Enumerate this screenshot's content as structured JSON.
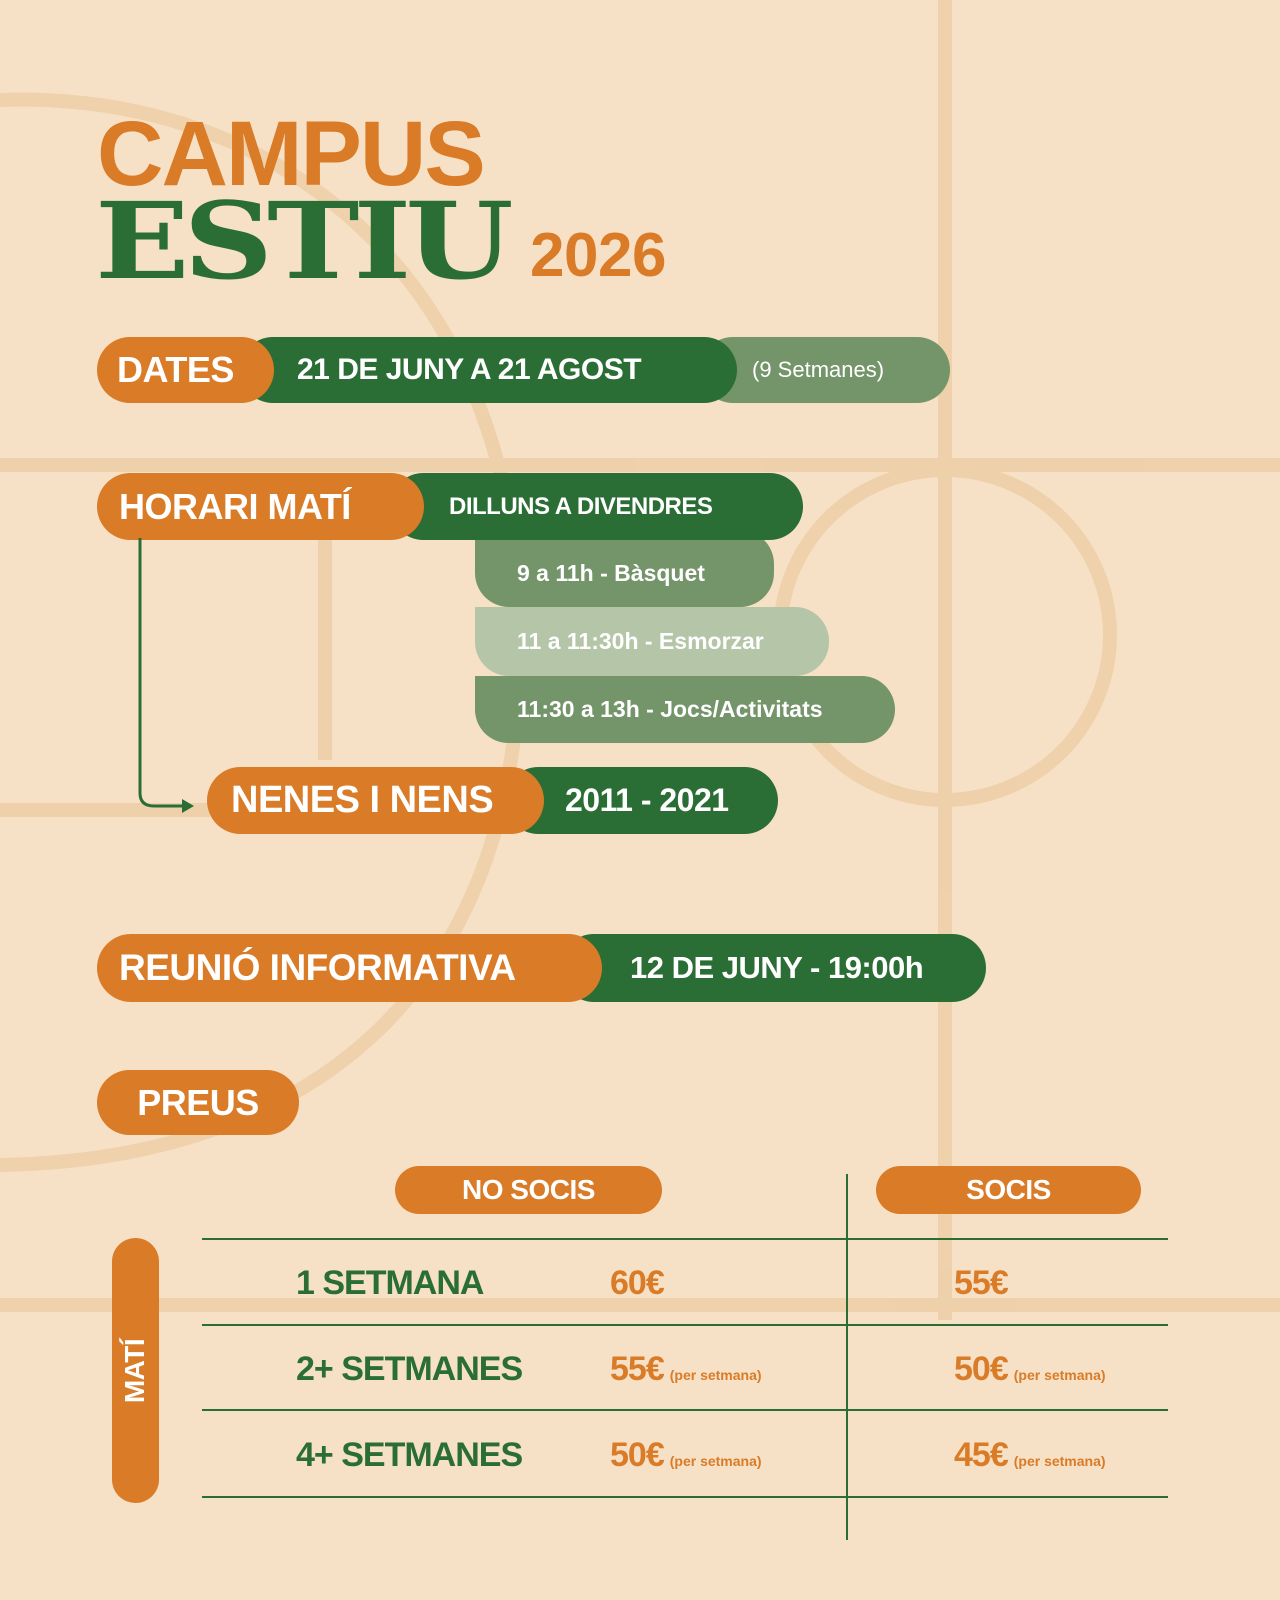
{
  "title": {
    "line1": "CAMPUS",
    "line2": "ESTIU",
    "year": "2026"
  },
  "colors": {
    "orange": "#d97b27",
    "dark_green": "#2a6e35",
    "mid_green": "#74946a",
    "light_green": "#b5c5a8",
    "background": "#f6e1c6"
  },
  "dates": {
    "label": "DATES",
    "value": "21 DE JUNY A 21 AGOST",
    "weeks": "(9 Setmanes)"
  },
  "schedule": {
    "label": "HORARI MATÍ",
    "days": "DILLUNS A DIVENDRES",
    "items": [
      "9 a 11h - Bàsquet",
      "11 a 11:30h - Esmorzar",
      "11:30 a 13h - Jocs/Activitats"
    ]
  },
  "kids": {
    "label": "NENES I NENS",
    "years": "2011 - 2021"
  },
  "meeting": {
    "label": "REUNIÓ INFORMATIVA",
    "value": "12 DE JUNY - 19:00h"
  },
  "prices": {
    "label": "PREUS",
    "col_no_socis": "NO SOCIS",
    "col_socis": "SOCIS",
    "side_label": "MATÍ",
    "rows": [
      {
        "label": "1 SETMANA",
        "no_socis": "60€",
        "socis": "55€",
        "note": ""
      },
      {
        "label": "2+ SETMANES",
        "no_socis": "55€",
        "socis": "50€",
        "note": "(per setmana)"
      },
      {
        "label": "4+ SETMANES",
        "no_socis": "50€",
        "socis": "45€",
        "note": "(per setmana)"
      }
    ]
  }
}
